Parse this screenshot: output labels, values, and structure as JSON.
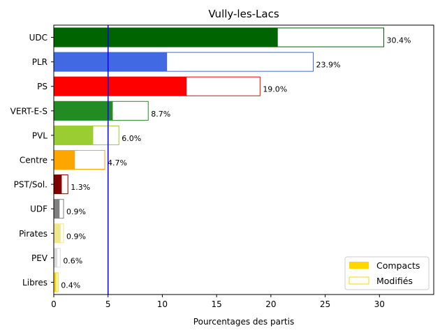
{
  "chart_data": {
    "type": "bar",
    "orientation": "horizontal",
    "title": "Vully-les-Lacs",
    "xlabel": "Pourcentages des partis",
    "ylabel": "",
    "xlim": [
      0,
      35
    ],
    "xticks": [
      0,
      5,
      10,
      15,
      20,
      25,
      30
    ],
    "grid": false,
    "reference_line": {
      "x": 5,
      "color": "#0000ff"
    },
    "categories": [
      "UDC",
      "PLR",
      "PS",
      "VERT-E-S",
      "PVL",
      "Centre",
      "PST/Sol.",
      "UDF",
      "Pirates",
      "PEV",
      "Libres"
    ],
    "series": [
      {
        "name": "Compacts",
        "style": "filled",
        "values": [
          20.6,
          10.4,
          12.2,
          5.4,
          3.6,
          1.9,
          0.7,
          0.5,
          0.6,
          0.3,
          0.2
        ]
      },
      {
        "name": "Modifiés",
        "style": "outline",
        "values": [
          9.8,
          13.5,
          6.8,
          3.3,
          2.4,
          2.8,
          0.6,
          0.4,
          0.3,
          0.3,
          0.2
        ]
      }
    ],
    "totals": [
      30.4,
      23.9,
      19.0,
      8.7,
      6.0,
      4.7,
      1.3,
      0.9,
      0.9,
      0.6,
      0.4
    ],
    "total_labels": [
      "30.4%",
      "23.9%",
      "19.0%",
      "8.7%",
      "6.0%",
      "4.7%",
      "1.3%",
      "0.9%",
      "0.9%",
      "0.6%",
      "0.4%"
    ],
    "colors": [
      "#006400",
      "#4169e1",
      "#ff0000",
      "#228b22",
      "#9acd32",
      "#ffa500",
      "#800000",
      "#808080",
      "#f0e68c",
      "#dcdcdc",
      "#ffd700"
    ],
    "legend": {
      "placement": "lower-right",
      "entries": [
        {
          "label": "Compacts",
          "style": "filled",
          "color": "#ffd700"
        },
        {
          "label": "Modifiés",
          "style": "outline",
          "color": "#ffd700"
        }
      ]
    }
  }
}
